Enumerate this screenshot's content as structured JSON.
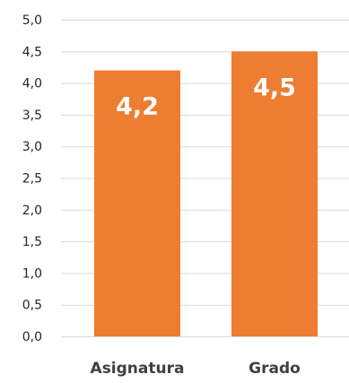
{
  "chart_data": {
    "type": "bar",
    "categories": [
      "Asignatura",
      "Grado"
    ],
    "values": [
      4.2,
      4.5
    ],
    "value_labels": [
      "4,2",
      "4,5"
    ],
    "y_ticks": [
      0,
      0.5,
      1,
      1.5,
      2,
      2.5,
      3,
      3.5,
      4,
      4.5,
      5
    ],
    "y_tick_labels": [
      "0,0",
      "0,5",
      "1,0",
      "1,5",
      "2,0",
      "2,5",
      "3,0",
      "3,5",
      "4,0",
      "4,5",
      "5,0"
    ],
    "ylim": [
      0,
      5
    ],
    "grid": true,
    "legend": "none",
    "title": "",
    "xlabel": "",
    "ylabel": ""
  },
  "colors": {
    "bar": "#ED7D31",
    "grid": "#D9D9D9",
    "tick_text": "#262626",
    "category_text": "#404040",
    "value_label_text": "#FFFFFF"
  }
}
